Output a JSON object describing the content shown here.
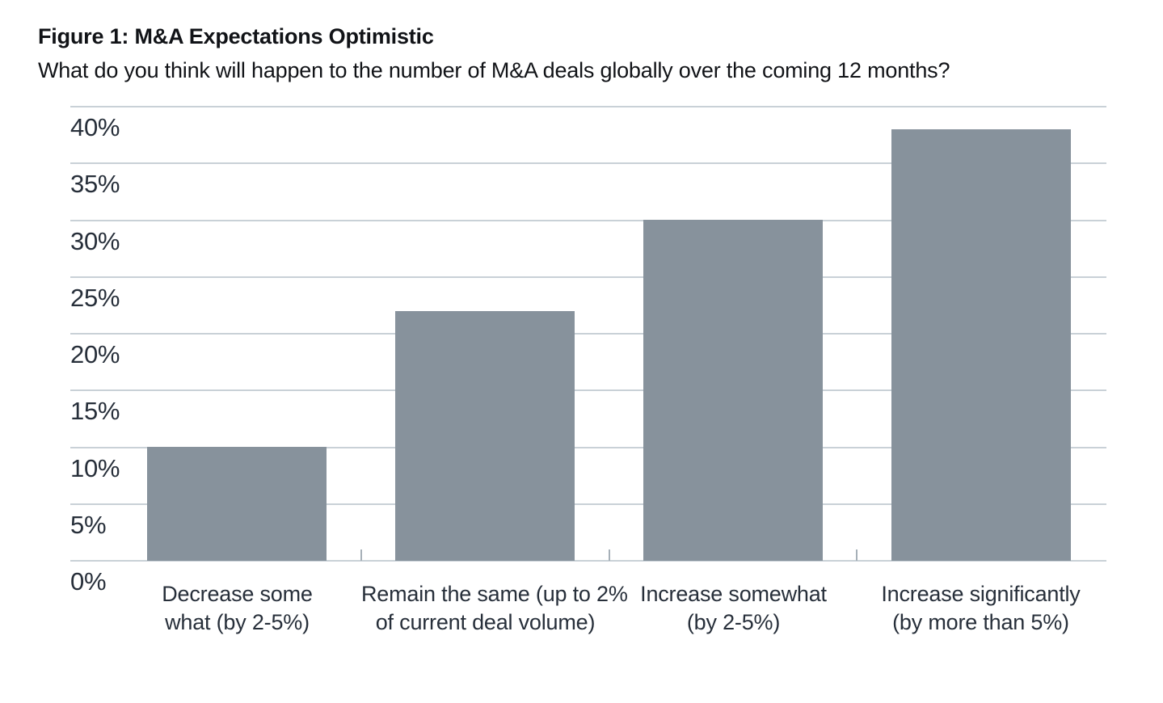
{
  "chart_data": {
    "type": "bar",
    "title": "Figure 1: M&A Expectations Optimistic",
    "subtitle": "What do you think will happen to the number of M&A deals globally over the coming 12 months?",
    "categories": [
      [
        "Decrease some",
        "what (by 2-5%)"
      ],
      [
        "Remain the same (up to 2%",
        "of current deal volume)"
      ],
      [
        "Increase somewhat",
        "(by 2-5%)"
      ],
      [
        "Increase significantly",
        "(by more than 5%)"
      ]
    ],
    "values": [
      10,
      22,
      30,
      38
    ],
    "unit": "%",
    "xlabel": "",
    "ylabel": "",
    "ylim": [
      0,
      40
    ],
    "ytick_step": 5,
    "ytick_labels": [
      "0%",
      "5%",
      "10%",
      "15%",
      "20%",
      "25%",
      "30%",
      "35%",
      "40%"
    ],
    "grid": true,
    "legend": "none",
    "colors": {
      "bar": "#87929c",
      "gridline": "#c9d1d7",
      "boundary_tick": "#a6b0b8",
      "axis_text": "#272f3a",
      "title_text": "#111317",
      "background": "#ffffff"
    }
  }
}
